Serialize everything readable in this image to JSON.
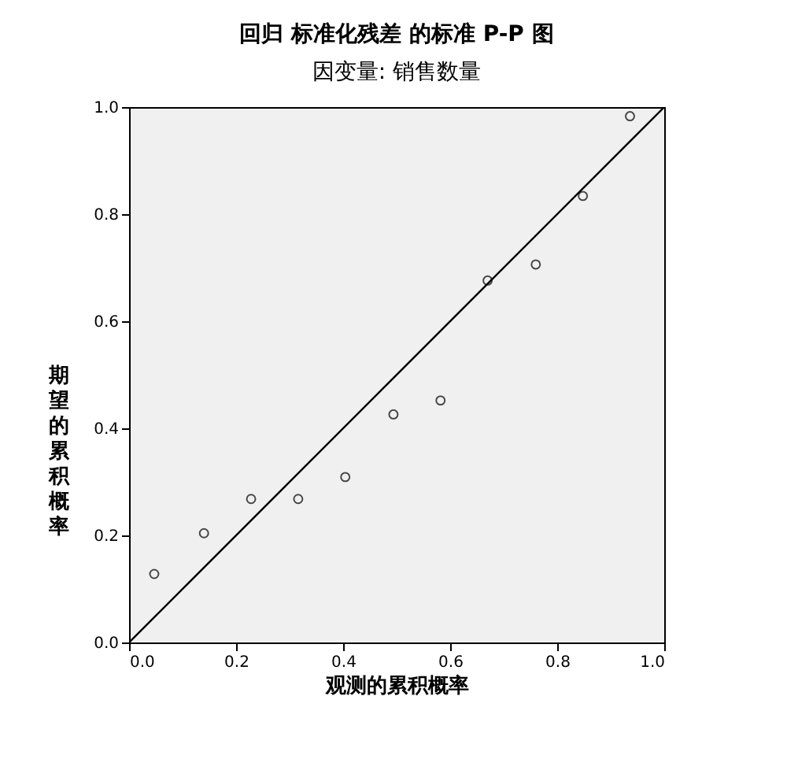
{
  "chart_data": {
    "type": "scatter",
    "title": "回归 标准化残差 的标准 P-P 图",
    "subtitle": "因变量: 销售数量",
    "xlabel": "观测的累积概率",
    "ylabel": "期望的累积概率",
    "xlim": [
      0,
      1
    ],
    "ylim": [
      0,
      1
    ],
    "xticks": [
      {
        "value": 0,
        "label": "0.0"
      },
      {
        "value": 0.2,
        "label": "0.2"
      },
      {
        "value": 0.4,
        "label": "0.4"
      },
      {
        "value": 0.6,
        "label": "0.6"
      },
      {
        "value": 0.8,
        "label": "0.8"
      },
      {
        "value": 1,
        "label": "1.0"
      }
    ],
    "yticks": [
      {
        "value": 0,
        "label": "0.0"
      },
      {
        "value": 0.2,
        "label": "0.2"
      },
      {
        "value": 0.4,
        "label": "0.4"
      },
      {
        "value": 0.6,
        "label": "0.6"
      },
      {
        "value": 0.8,
        "label": "0.8"
      },
      {
        "value": 1,
        "label": "1.0"
      }
    ],
    "grid": false,
    "series": [
      {
        "marker": "circle",
        "color": "#000000",
        "x": [
          0.047,
          0.14,
          0.228,
          0.316,
          0.404,
          0.494,
          0.582,
          0.67,
          0.76,
          0.848,
          0.936
        ],
        "values": [
          0.128,
          0.204,
          0.268,
          0.268,
          0.309,
          0.426,
          0.452,
          0.676,
          0.706,
          0.834,
          0.983
        ]
      },
      {
        "type": "line",
        "color": "#000000",
        "x": [
          0,
          1
        ],
        "values": [
          0,
          1
        ],
        "line_style": "solid",
        "marker": "none"
      }
    ]
  }
}
